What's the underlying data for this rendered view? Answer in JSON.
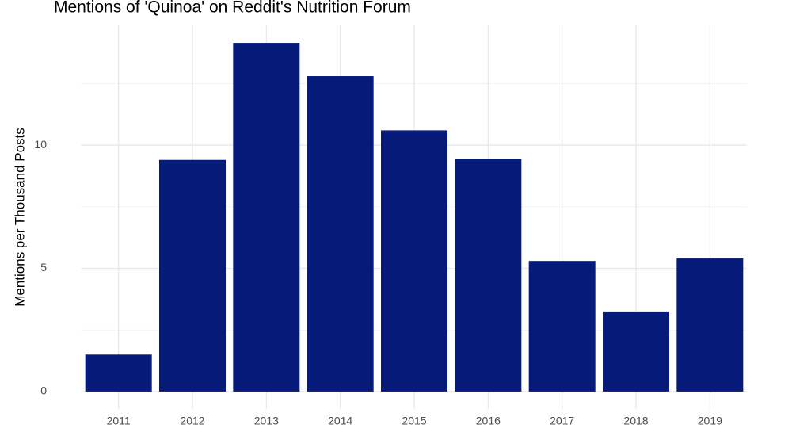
{
  "chart_data": {
    "type": "bar",
    "title": "Mentions of 'Quinoa' on Reddit's Nutrition Forum",
    "y_label": "Mentions per Thousand Posts",
    "categories": [
      "2011",
      "2012",
      "2013",
      "2014",
      "2015",
      "2016",
      "2017",
      "2018",
      "2019"
    ],
    "values": [
      1.5,
      9.4,
      14.15,
      12.8,
      10.6,
      9.45,
      5.3,
      3.25,
      5.4
    ],
    "color": "#061a7a",
    "ylim": [
      -0.71,
      14.86
    ],
    "yticks": [
      0,
      5,
      10
    ],
    "yminor": [
      2.5,
      7.5,
      12.5
    ],
    "grid": true
  }
}
